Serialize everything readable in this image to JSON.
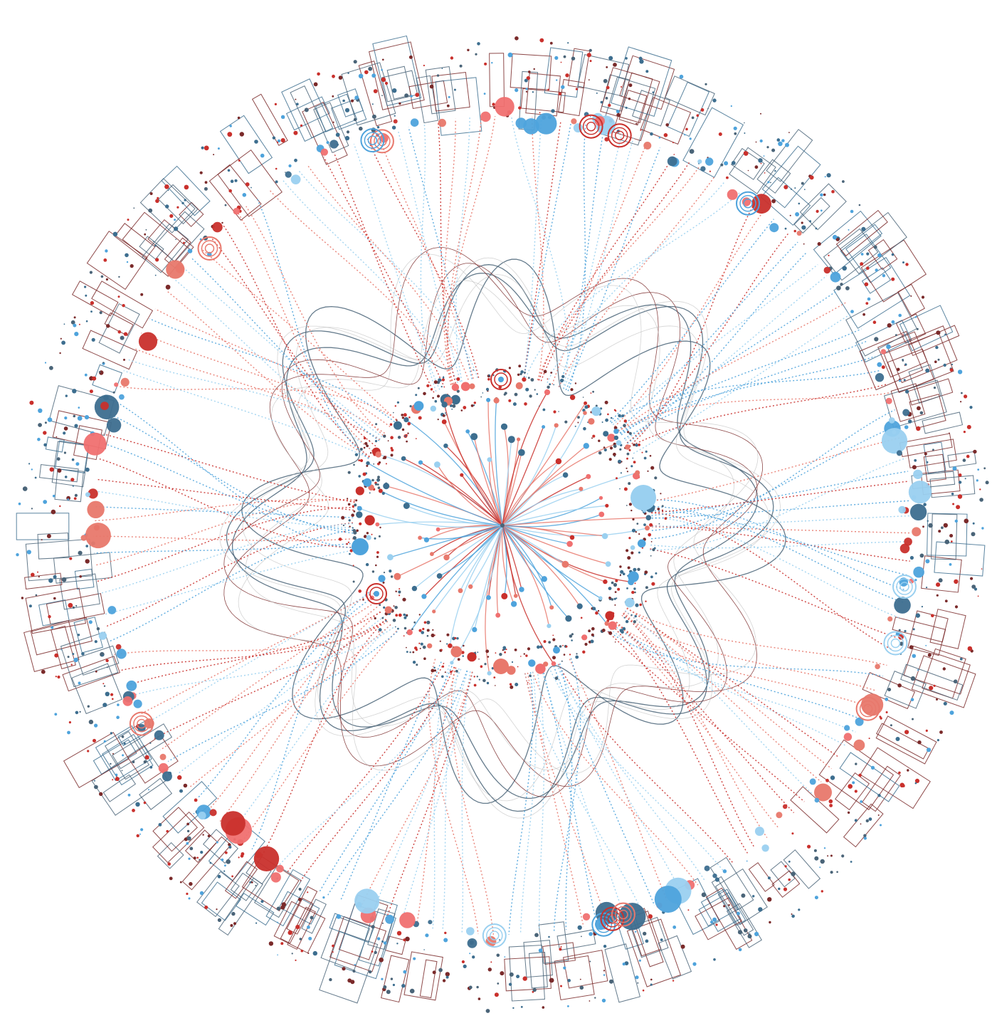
{
  "diagram": {
    "type": "radial-network",
    "text_labels": [],
    "palette": {
      "red_dark": "#c9302c",
      "red_light": "#e8786c",
      "salmon": "#f07070",
      "blue_dark": "#3d6e8f",
      "blue_mid": "#4ea3dc",
      "blue_light": "#9ad0f0",
      "maroon": "#7a2a2a",
      "slate": "#4a6478"
    },
    "layers": {
      "hub": "central-hub",
      "inner_spokes": "solid-curved-edges",
      "middle_ring": "medium-node-ring",
      "outer_edges": "dotted-radial-edges",
      "wave_curves": "wavy-outline-curves",
      "outer_ring": "large-node-ring",
      "box_ring": "outline-rectangle-ring",
      "scatter": "outer-scatter-dots"
    }
  }
}
